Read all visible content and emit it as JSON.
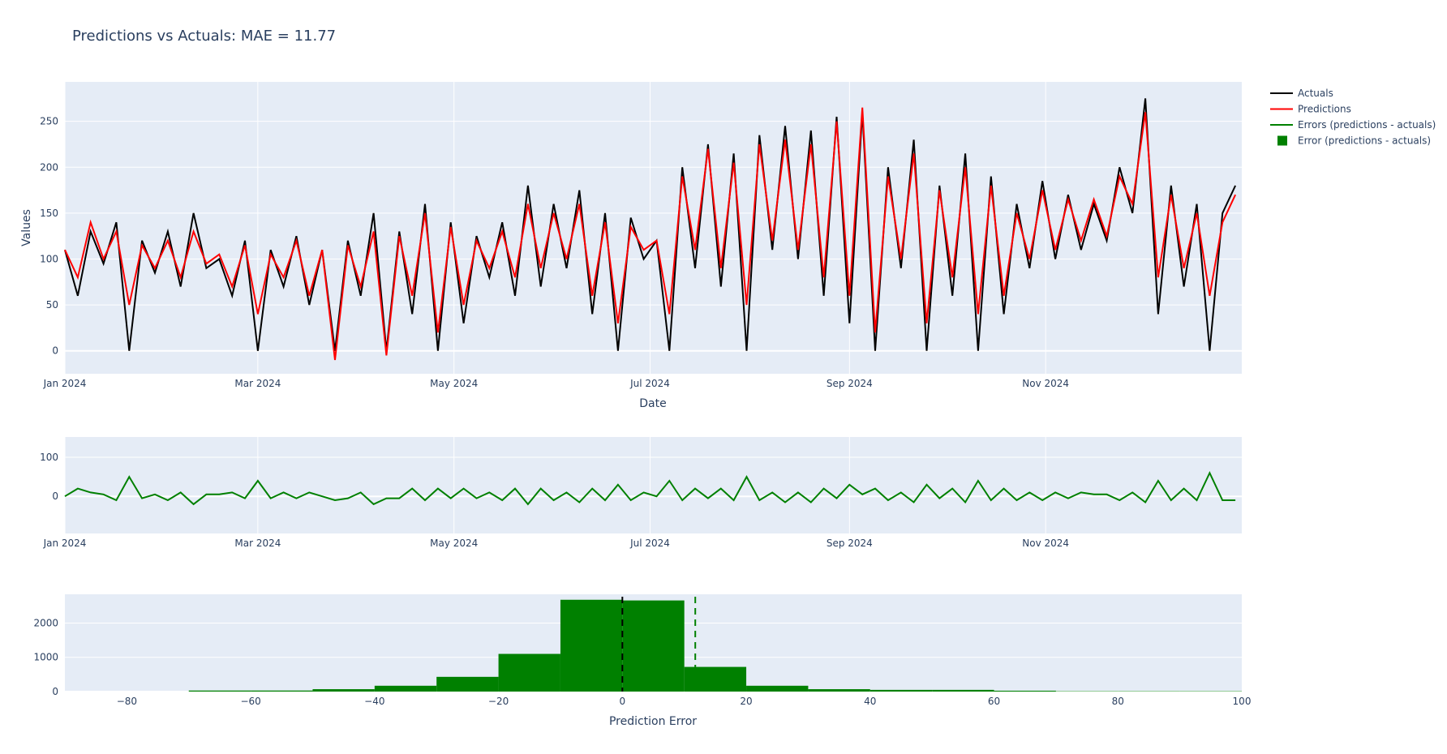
{
  "chart_data": [
    {
      "type": "line",
      "title": "Predictions vs Actuals: MAE = 11.77",
      "xlabel": "Date",
      "ylabel": "Values",
      "x_start": "2024-01-01",
      "x_step_days": 4,
      "xlim": [
        "2024-01-01",
        "2024-12-31"
      ],
      "ylim": [
        -25,
        293
      ],
      "x_ticks": [
        "Jan 2024",
        "Mar 2024",
        "May 2024",
        "Jul 2024",
        "Sep 2024",
        "Nov 2024"
      ],
      "x_tick_days": [
        0,
        60,
        121,
        182,
        244,
        305
      ],
      "y_ticks": [
        0,
        50,
        100,
        150,
        200,
        250
      ],
      "series": [
        {
          "name": "Actuals",
          "color": "#000000",
          "values": [
            110,
            60,
            130,
            95,
            140,
            0,
            120,
            85,
            130,
            70,
            150,
            90,
            100,
            60,
            120,
            0,
            110,
            70,
            125,
            50,
            110,
            0,
            120,
            60,
            150,
            0,
            130,
            40,
            160,
            0,
            140,
            30,
            125,
            80,
            140,
            60,
            180,
            70,
            160,
            90,
            175,
            40,
            150,
            0,
            145,
            100,
            120,
            0,
            200,
            90,
            225,
            70,
            215,
            0,
            235,
            110,
            245,
            100,
            240,
            60,
            255,
            30,
            260,
            0,
            200,
            90,
            230,
            0,
            180,
            60,
            215,
            0,
            190,
            40,
            160,
            90,
            185,
            100,
            170,
            110,
            160,
            120,
            200,
            150,
            275,
            40,
            180,
            70,
            160,
            0,
            150,
            180
          ]
        },
        {
          "name": "Predictions",
          "color": "#ff0000",
          "values": [
            110,
            80,
            140,
            100,
            130,
            50,
            115,
            90,
            120,
            80,
            130,
            95,
            105,
            70,
            115,
            40,
            105,
            80,
            120,
            60,
            110,
            -10,
            115,
            70,
            130,
            -5,
            125,
            60,
            150,
            20,
            135,
            50,
            120,
            90,
            130,
            80,
            160,
            90,
            150,
            100,
            160,
            60,
            140,
            30,
            135,
            110,
            120,
            40,
            190,
            110,
            220,
            90,
            205,
            50,
            225,
            120,
            230,
            110,
            225,
            80,
            250,
            60,
            265,
            20,
            190,
            100,
            215,
            30,
            175,
            80,
            200,
            40,
            180,
            60,
            150,
            100,
            175,
            110,
            165,
            120,
            165,
            125,
            190,
            160,
            260,
            80,
            170,
            90,
            150,
            60,
            140,
            170
          ]
        }
      ],
      "legend": "right"
    },
    {
      "type": "line",
      "series": [
        {
          "name": "Errors (predictions - actuals)",
          "color": "#008000",
          "derived": "Predictions - Actuals"
        }
      ],
      "ylim": [
        -95,
        152
      ],
      "y_ticks": [
        0,
        100
      ],
      "x_ticks": [
        "Jan 2024",
        "Mar 2024",
        "May 2024",
        "Jul 2024",
        "Sep 2024",
        "Nov 2024"
      ]
    },
    {
      "type": "bar",
      "name": "Error (predictions - actuals)",
      "color": "#008000",
      "xlabel": "Prediction Error",
      "bin_edges": [
        -70,
        -60,
        -50,
        -40,
        -30,
        -20,
        -10,
        0,
        10,
        20,
        30,
        40,
        50,
        60,
        70,
        80,
        90,
        100
      ],
      "values": [
        30,
        30,
        70,
        170,
        430,
        1100,
        2680,
        2660,
        720,
        170,
        70,
        50,
        50,
        25,
        10,
        10,
        10
      ],
      "xlim": [
        -90,
        100
      ],
      "ylim": [
        0,
        2840
      ],
      "x_ticks": [
        -80,
        -60,
        -40,
        -20,
        0,
        20,
        40,
        60,
        80,
        100
      ],
      "x_tick_labels": [
        "−80",
        "−60",
        "−40",
        "−20",
        "0",
        "20",
        "40",
        "60",
        "80",
        "100"
      ],
      "y_ticks": [
        0,
        1000,
        2000
      ],
      "vlines": [
        {
          "x": 0,
          "color": "#000000"
        },
        {
          "x": 11.77,
          "color": "#008000"
        }
      ]
    }
  ],
  "legend": {
    "items": [
      {
        "label": "Actuals",
        "color": "#000000",
        "kind": "line"
      },
      {
        "label": "Predictions",
        "color": "#ff0000",
        "kind": "line"
      },
      {
        "label": "Errors (predictions - actuals)",
        "color": "#008000",
        "kind": "line"
      },
      {
        "label": "Error (predictions - actuals)",
        "color": "#008000",
        "kind": "square"
      }
    ]
  }
}
